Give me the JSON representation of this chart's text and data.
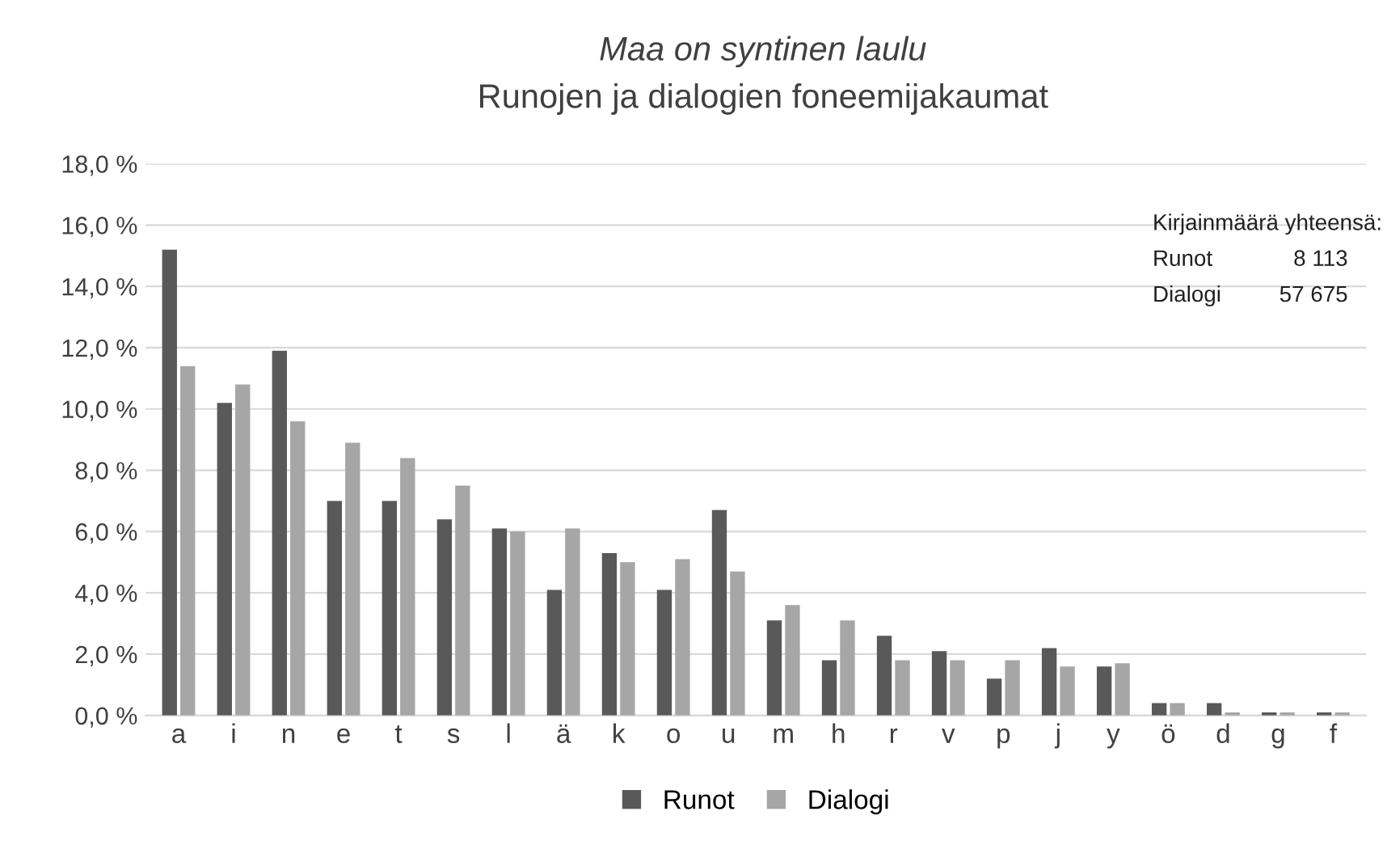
{
  "chart_data": {
    "type": "bar",
    "title": "Maa on syntinen laulu",
    "subtitle": "Runojen ja dialogien foneemijakaumat",
    "categories": [
      "a",
      "i",
      "n",
      "e",
      "t",
      "s",
      "l",
      "ä",
      "k",
      "o",
      "u",
      "m",
      "h",
      "r",
      "v",
      "p",
      "j",
      "y",
      "ö",
      "d",
      "g",
      "f"
    ],
    "series": [
      {
        "name": "Runot",
        "color": "#595959",
        "values": [
          15.2,
          10.2,
          11.9,
          7.0,
          7.0,
          6.4,
          6.1,
          4.1,
          5.3,
          4.1,
          6.7,
          3.1,
          1.8,
          2.6,
          2.1,
          1.2,
          2.2,
          1.6,
          0.4,
          0.4,
          0.1,
          0.1
        ]
      },
      {
        "name": "Dialogi",
        "color": "#a6a6a6",
        "values": [
          11.4,
          10.8,
          9.6,
          8.9,
          8.4,
          7.5,
          6.0,
          6.1,
          5.0,
          5.1,
          4.7,
          3.6,
          3.1,
          1.8,
          1.8,
          1.8,
          1.6,
          1.7,
          0.4,
          0.1,
          0.1,
          0.1
        ]
      }
    ],
    "ylim": [
      0,
      18
    ],
    "yticks": [
      {
        "value": 0,
        "label": "0,0 %"
      },
      {
        "value": 2,
        "label": "2,0 %"
      },
      {
        "value": 4,
        "label": "4,0 %"
      },
      {
        "value": 6,
        "label": "6,0 %"
      },
      {
        "value": 8,
        "label": "8,0 %"
      },
      {
        "value": 10,
        "label": "10,0 %"
      },
      {
        "value": 12,
        "label": "12,0 %"
      },
      {
        "value": 14,
        "label": "14,0 %"
      },
      {
        "value": 16,
        "label": "16,0 %"
      },
      {
        "value": 18,
        "label": "18,0 %"
      }
    ],
    "grid": "y",
    "legend": "bottom",
    "annotations": [
      "Kirjainmäärä yhteensä:",
      "Runot\t8 113",
      "Dialogi\t57 675"
    ]
  }
}
